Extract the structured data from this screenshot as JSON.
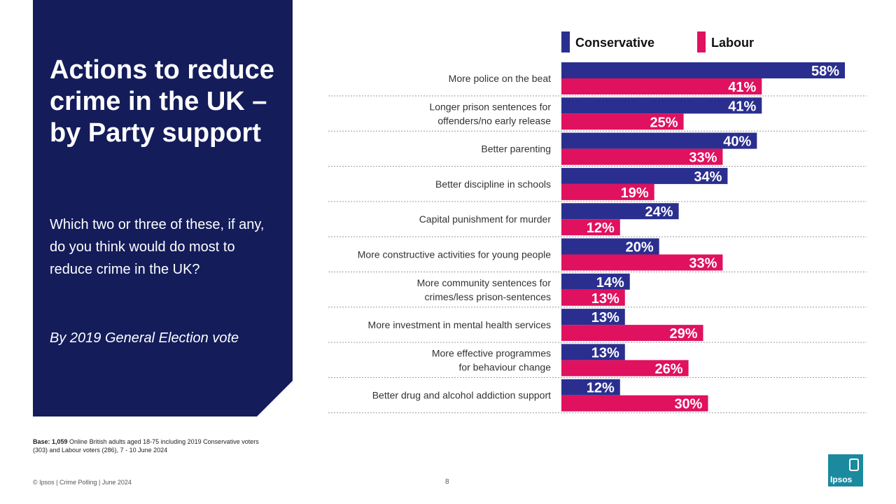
{
  "panel": {
    "title": "Actions to reduce crime in the UK – by Party support",
    "question": "Which two or three of these, if any, do you think would do most to reduce crime in the UK?",
    "subtitle": "By 2019 General Election vote"
  },
  "colors": {
    "panel": "#141c5a",
    "conservative": "#2a2f8f",
    "labour": "#e0115f",
    "logo": "#1b8a9e"
  },
  "chart_data": {
    "type": "bar",
    "orientation": "horizontal",
    "title": "Actions to reduce crime in the UK – by Party support",
    "categories": [
      [
        "More police on the beat"
      ],
      [
        "Longer prison sentences for",
        "offenders/no early release"
      ],
      [
        "Better parenting"
      ],
      [
        "Better discipline in schools"
      ],
      [
        "Capital punishment for murder"
      ],
      [
        "More constructive activities for young people"
      ],
      [
        "More community sentences for",
        "crimes/less prison-sentences"
      ],
      [
        "More investment in mental health services"
      ],
      [
        "More effective programmes",
        "for behaviour change"
      ],
      [
        "Better drug and alcohol addiction support"
      ]
    ],
    "series": [
      {
        "name": "Conservative",
        "color": "#2a2f8f",
        "values": [
          58,
          41,
          40,
          34,
          24,
          20,
          14,
          13,
          13,
          12
        ]
      },
      {
        "name": "Labour",
        "color": "#e0115f",
        "values": [
          41,
          25,
          33,
          19,
          12,
          33,
          13,
          29,
          26,
          30
        ]
      }
    ],
    "value_suffix": "%",
    "xlim": [
      0,
      58
    ],
    "legend": "top"
  },
  "base": {
    "bold": "Base: 1,059",
    "text": " Online British adults aged 18-75  including 2019 Conservative voters (303) and Labour voters (286), 7 - 10 June 2024"
  },
  "footer": {
    "text": "© Ipsos | Crime Polling | June 2024",
    "page": "8"
  },
  "logo": {
    "text": "Ipsos"
  }
}
